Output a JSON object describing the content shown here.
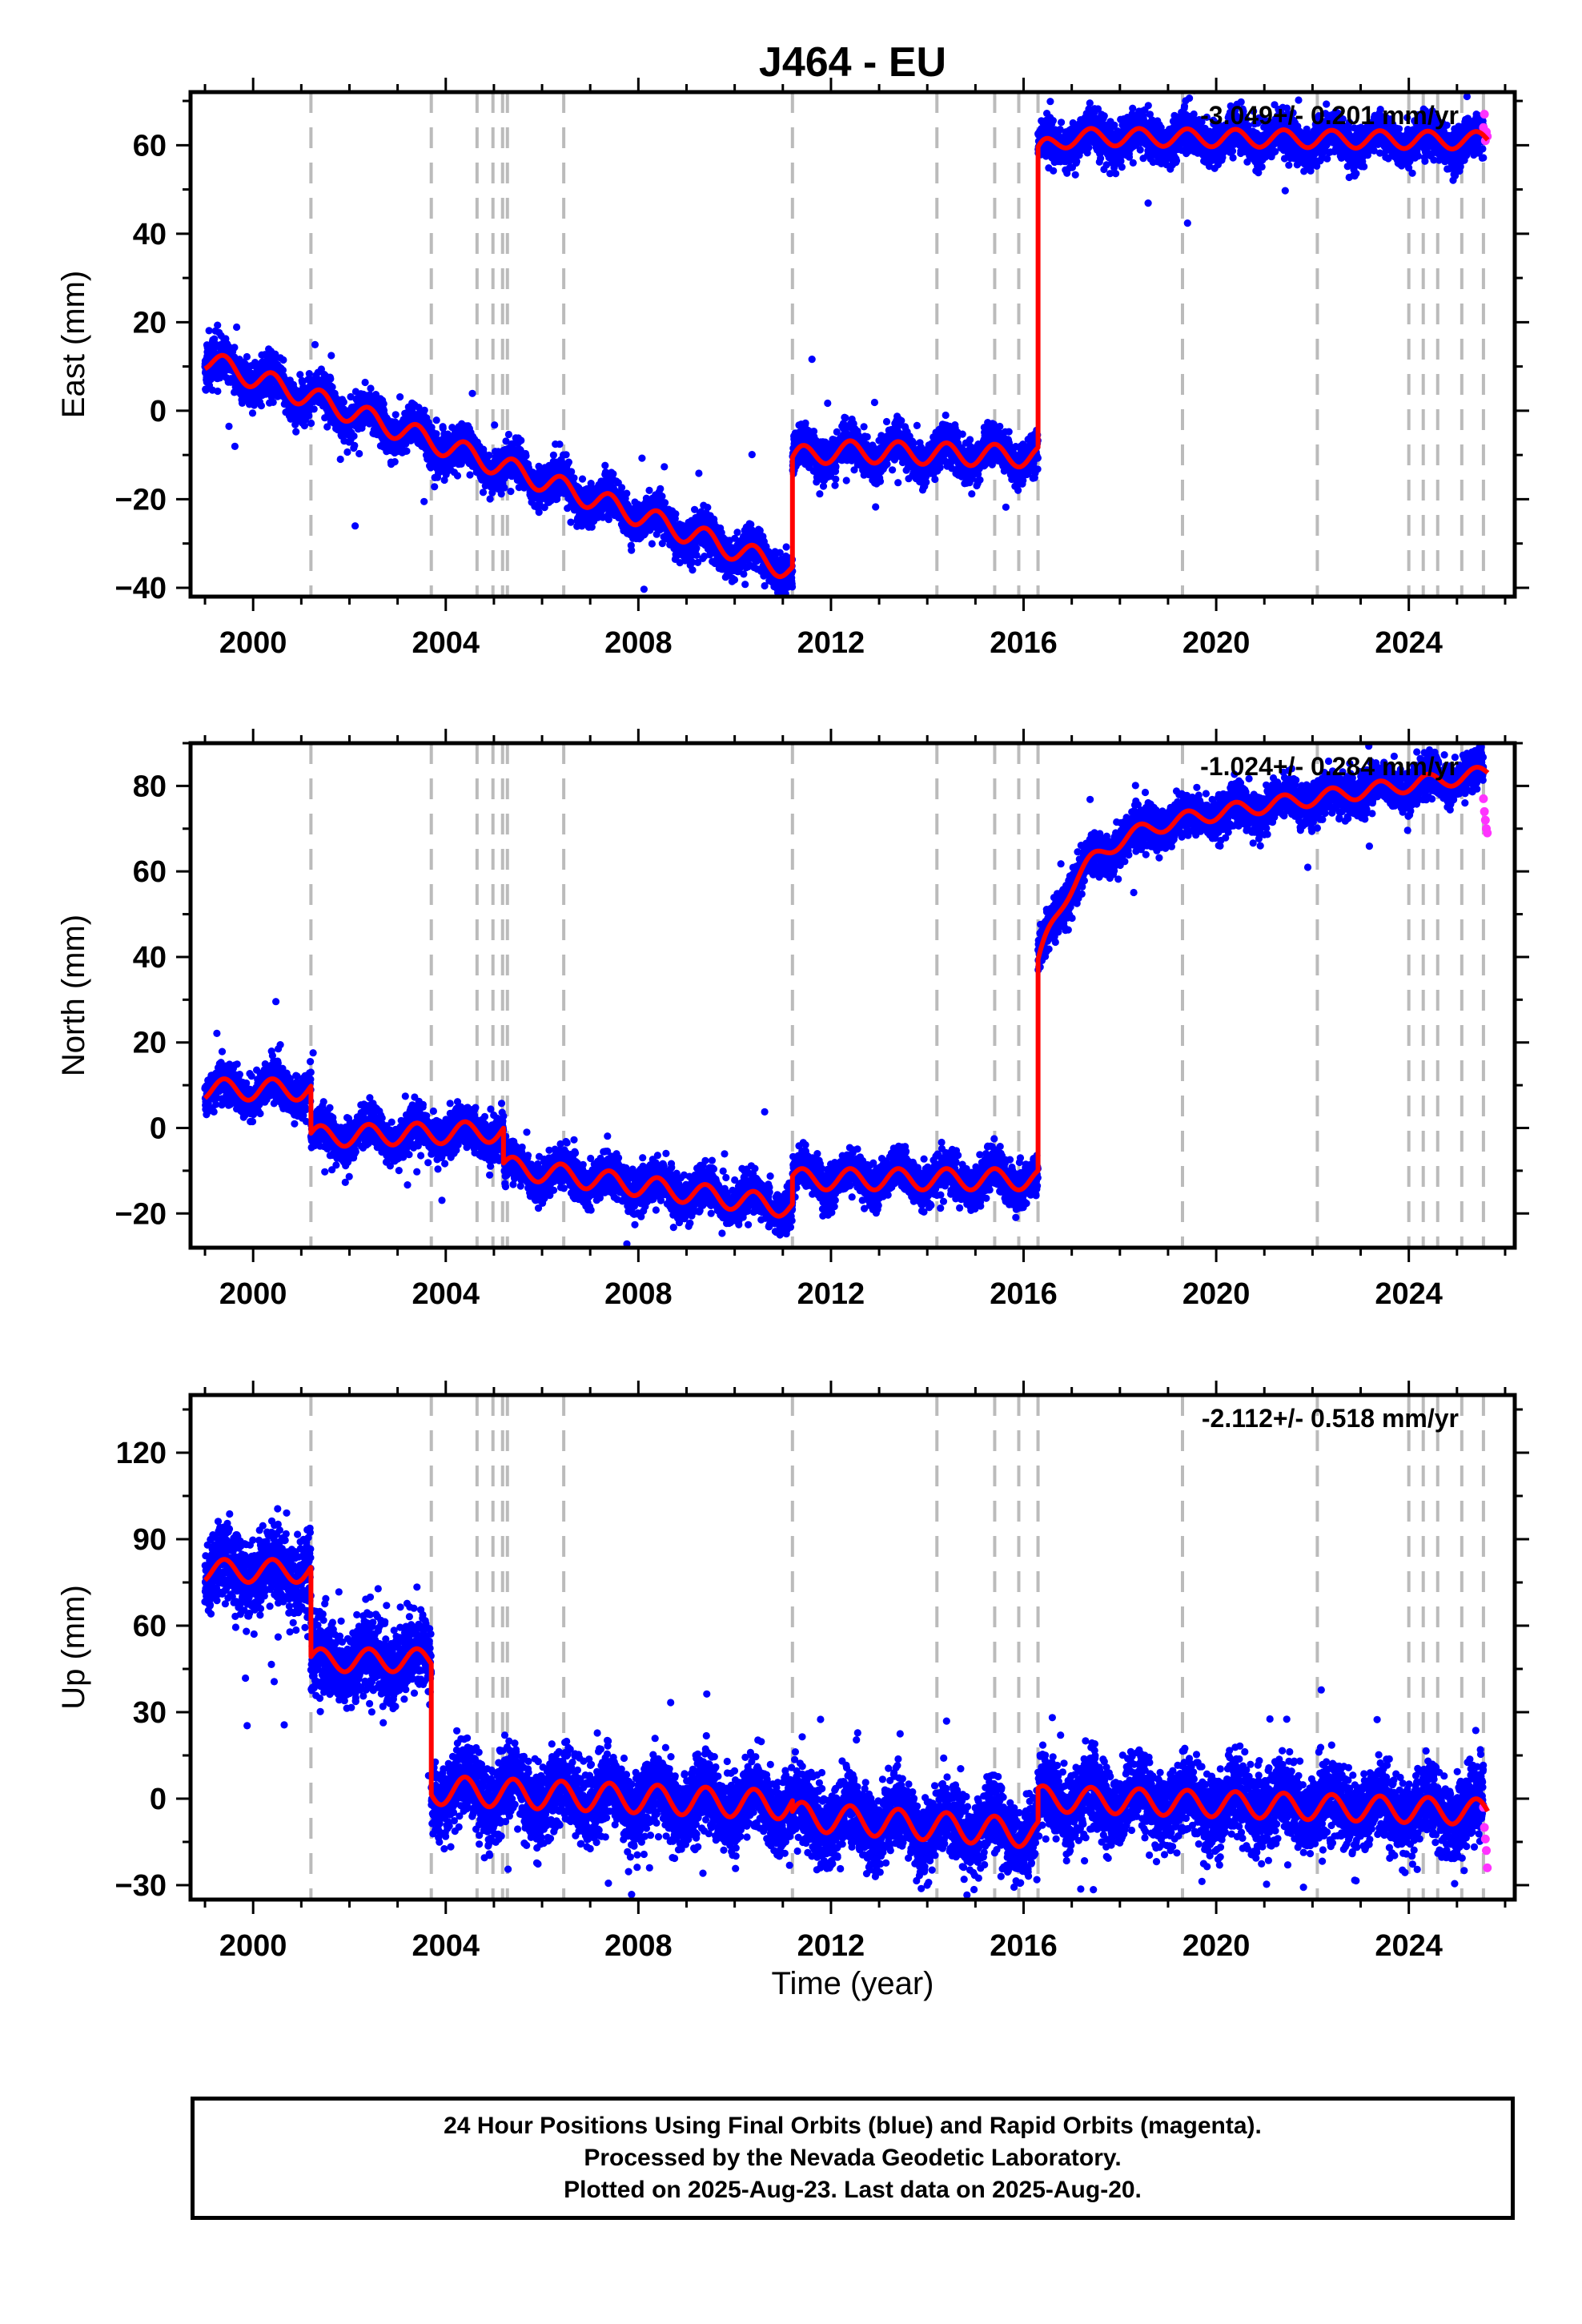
{
  "page_title": "J464 - EU",
  "xlabel": "Time (year)",
  "footer": {
    "line1": "24 Hour Positions Using Final Orbits (blue) and Rapid Orbits (magenta).",
    "line2": "Processed by the Nevada Geodetic Laboratory.",
    "line3": "Plotted on 2025-Aug-23. Last data on 2025-Aug-20."
  },
  "colors": {
    "final_orbits": "#0000ff",
    "rapid_orbits": "#ff33ff",
    "model": "#ff0000",
    "event_lines": "#bbbbbb"
  },
  "chart_data": [
    {
      "type": "scatter",
      "component": "east",
      "ylabel": "East (mm)",
      "xlim": [
        1998.7,
        2026.2
      ],
      "ylim": [
        -42,
        72
      ],
      "xticks": [
        2000,
        2004,
        2008,
        2012,
        2016,
        2020,
        2024
      ],
      "yticks": [
        -40,
        -20,
        0,
        20,
        40,
        60
      ],
      "rate_label": "-3.049+/- 0.201 mm/yr",
      "event_lines": [
        2001.2,
        2003.7,
        2004.65,
        2004.98,
        2005.18,
        2005.28,
        2006.45,
        2011.2,
        2014.2,
        2015.4,
        2015.9,
        2016.3,
        2019.3,
        2022.1,
        2024.0,
        2024.3,
        2024.6,
        2025.1,
        2025.55
      ],
      "model_segments": [
        {
          "t0": 1999.0,
          "t1": 2011.2,
          "offset": 11.5,
          "slope": -3.9,
          "amp": 2.5
        },
        {
          "t0": 2011.2,
          "t1": 2016.3,
          "offset": -8.8,
          "slope": -0.3,
          "amp": 2.5,
          "relax": -2.5,
          "tau": 0.4
        },
        {
          "t0": 2016.3,
          "t1": 2025.65,
          "offset": 62.0,
          "slope": -0.1,
          "amp": 2.0,
          "relax": -4.0,
          "tau": 0.3
        }
      ],
      "scatter_spread": 2.2,
      "outlier_rate": 0.01,
      "rapid_points": [
        2025.55,
        2025.57,
        2025.59,
        2025.61,
        2025.63
      ],
      "rapid_values": [
        64,
        67,
        61,
        63,
        62
      ]
    },
    {
      "type": "scatter",
      "component": "north",
      "ylabel": "North (mm)",
      "xlim": [
        1998.7,
        2026.2
      ],
      "ylim": [
        -28,
        90
      ],
      "xticks": [
        2000,
        2004,
        2008,
        2012,
        2016,
        2020,
        2024
      ],
      "yticks": [
        -20,
        0,
        20,
        40,
        60,
        80
      ],
      "rate_label": "-1.024+/- 0.284 mm/yr",
      "event_lines": [
        2001.2,
        2003.7,
        2004.65,
        2004.98,
        2005.18,
        2005.28,
        2006.45,
        2011.2,
        2014.2,
        2015.4,
        2015.9,
        2016.3,
        2019.3,
        2022.1,
        2024.0,
        2024.3,
        2024.6,
        2025.1,
        2025.55
      ],
      "model_segments": [
        {
          "t0": 1999.0,
          "t1": 2001.2,
          "offset": 9.0,
          "slope": 0.0,
          "amp": 2.5
        },
        {
          "t0": 2001.2,
          "t1": 2005.2,
          "offset": -2.0,
          "slope": 0.3,
          "amp": 2.5
        },
        {
          "t0": 2005.2,
          "t1": 2011.2,
          "offset": -9.0,
          "slope": -1.6,
          "amp": 2.5
        },
        {
          "t0": 2011.2,
          "t1": 2016.3,
          "offset": -12.0,
          "slope": 0.0,
          "amp": 2.5
        },
        {
          "t0": 2016.3,
          "t1": 2025.65,
          "offset": 68.0,
          "slope": 1.6,
          "amp": 1.8,
          "relax": -30.0,
          "tau": 0.8
        }
      ],
      "scatter_spread": 2.3,
      "outlier_rate": 0.008,
      "rapid_points": [
        2025.55,
        2025.57,
        2025.59,
        2025.61,
        2025.63
      ],
      "rapid_values": [
        77,
        74,
        72,
        70,
        69
      ]
    },
    {
      "type": "scatter",
      "component": "up",
      "ylabel": "Up (mm)",
      "xlim": [
        1998.7,
        2026.2
      ],
      "ylim": [
        -35,
        140
      ],
      "xticks": [
        2000,
        2004,
        2008,
        2012,
        2016,
        2020,
        2024
      ],
      "yticks": [
        -30,
        0,
        30,
        60,
        90,
        120
      ],
      "rate_label": "-2.112+/- 0.518 mm/yr",
      "event_lines": [
        2001.2,
        2003.7,
        2004.65,
        2004.98,
        2005.18,
        2005.28,
        2006.45,
        2011.2,
        2014.2,
        2015.4,
        2015.9,
        2016.3,
        2019.3,
        2022.1,
        2024.0,
        2024.3,
        2024.6,
        2025.1,
        2025.55
      ],
      "model_segments": [
        {
          "t0": 1999.0,
          "t1": 2001.2,
          "offset": 79.0,
          "slope": 0.0,
          "amp": 4.0
        },
        {
          "t0": 2001.2,
          "t1": 2003.7,
          "offset": 48.0,
          "slope": 0.0,
          "amp": 4.0
        },
        {
          "t0": 2003.7,
          "t1": 2011.2,
          "offset": 3.0,
          "slope": -0.7,
          "amp": 5.0
        },
        {
          "t0": 2011.2,
          "t1": 2016.3,
          "offset": -6.0,
          "slope": -1.2,
          "amp": 5.0
        },
        {
          "t0": 2016.3,
          "t1": 2025.65,
          "offset": 0.0,
          "slope": -0.5,
          "amp": 4.5
        }
      ],
      "scatter_spread": 6.5,
      "outlier_rate": 0.012,
      "rapid_points": [
        2025.55,
        2025.57,
        2025.59,
        2025.61,
        2025.63
      ],
      "rapid_values": [
        -3,
        -10,
        -14,
        -18,
        -24
      ]
    }
  ]
}
